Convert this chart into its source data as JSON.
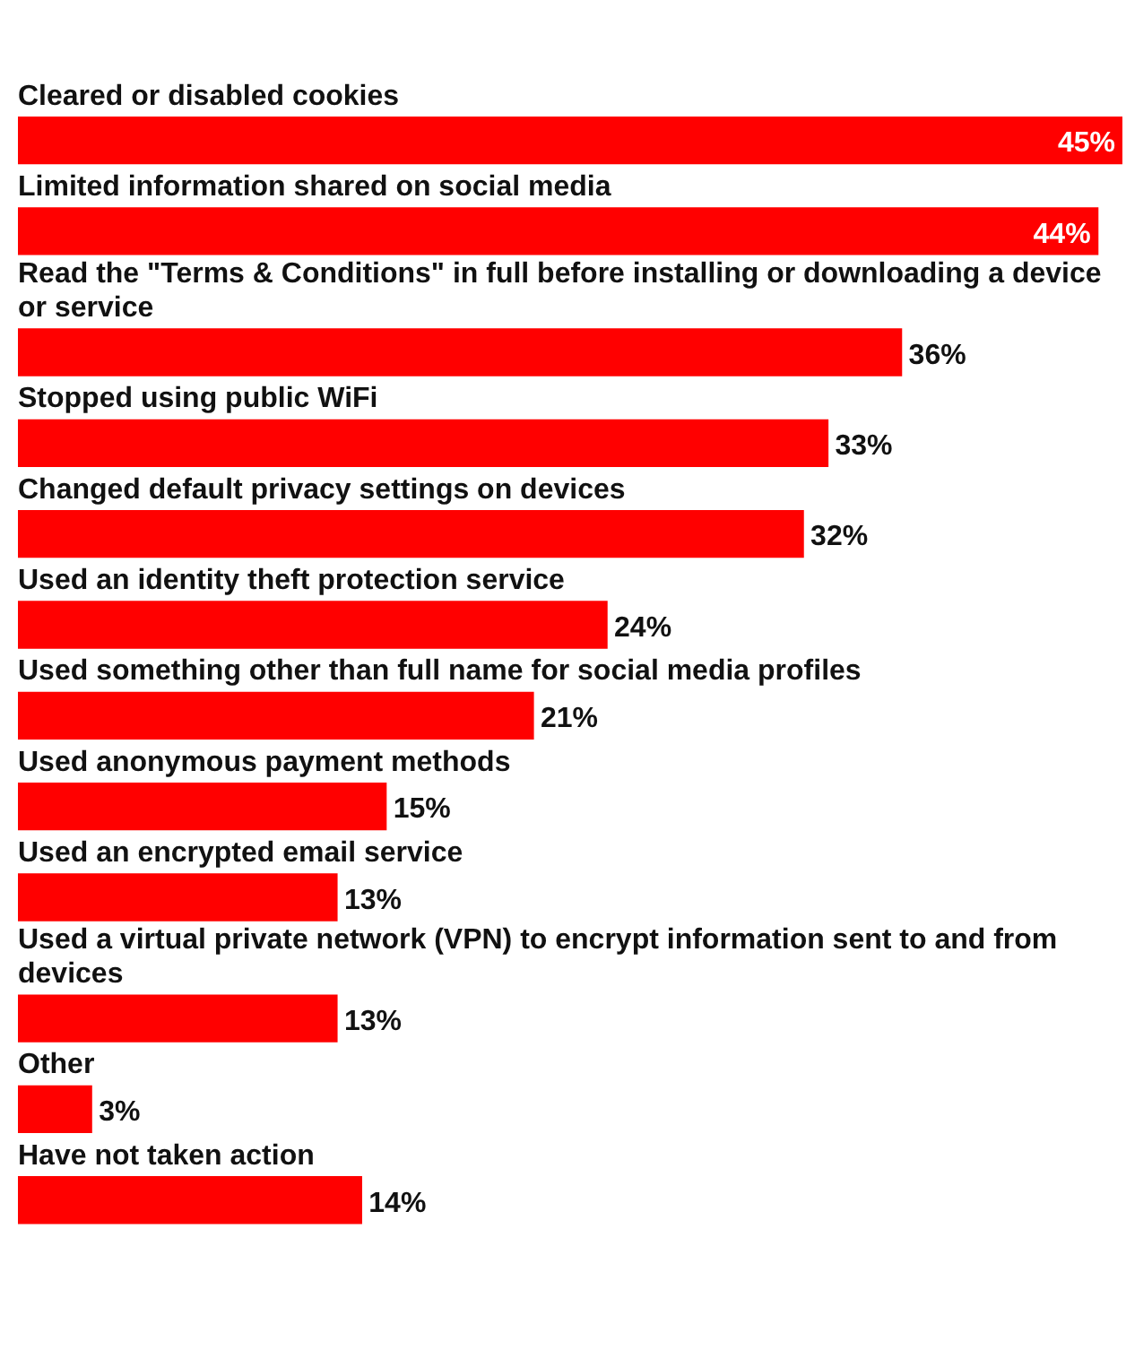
{
  "chart_data": {
    "type": "bar",
    "orientation": "horizontal",
    "color": "#ff0000",
    "categories": [
      "Cleared or disabled cookies",
      "Limited information shared on social media",
      "Read the \"Terms & Conditions\" in full before installing or downloading a device or service",
      "Stopped using public WiFi",
      "Changed default privacy settings on devices",
      "Used an identity theft protection service",
      "Used something other than full name for social media profiles",
      "Used anonymous payment methods",
      "Used an encrypted email service",
      "Used a virtual private network (VPN) to encrypt information sent to and from devices",
      "Other",
      "Have not taken action"
    ],
    "values": [
      45,
      44,
      36,
      33,
      32,
      24,
      21,
      15,
      13,
      13,
      3,
      14
    ],
    "value_labels": [
      "45%",
      "44%",
      "36%",
      "33%",
      "32%",
      "24%",
      "21%",
      "15%",
      "13%",
      "13%",
      "3%",
      "14%"
    ]
  }
}
